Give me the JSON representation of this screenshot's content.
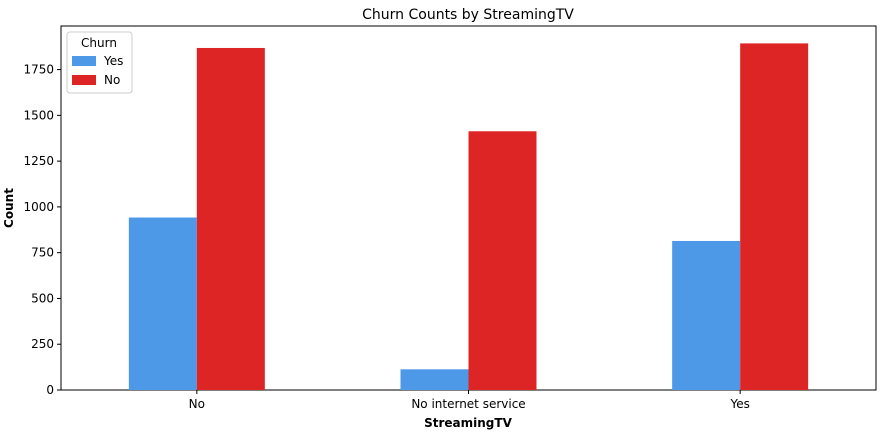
{
  "chart_data": {
    "type": "bar",
    "title": "Churn Counts by StreamingTV",
    "xlabel": "StreamingTV",
    "ylabel": "Count",
    "categories": [
      "No",
      "No internet service",
      "Yes"
    ],
    "series": [
      {
        "name": "Yes",
        "values": [
          942,
          113,
          814
        ],
        "color": "#4d99e8"
      },
      {
        "name": "No",
        "values": [
          1868,
          1413,
          1893
        ],
        "color": "#de2525"
      }
    ],
    "ylim": [
      0,
      1988
    ],
    "yticks": [
      0,
      250,
      500,
      750,
      1000,
      1250,
      1500,
      1750
    ],
    "ytick_labels": [
      "0",
      "250",
      "500",
      "750",
      "1000",
      "1250",
      "1500",
      "1750"
    ],
    "grid": false,
    "legend": {
      "title": "Churn",
      "position": "top-left"
    }
  }
}
